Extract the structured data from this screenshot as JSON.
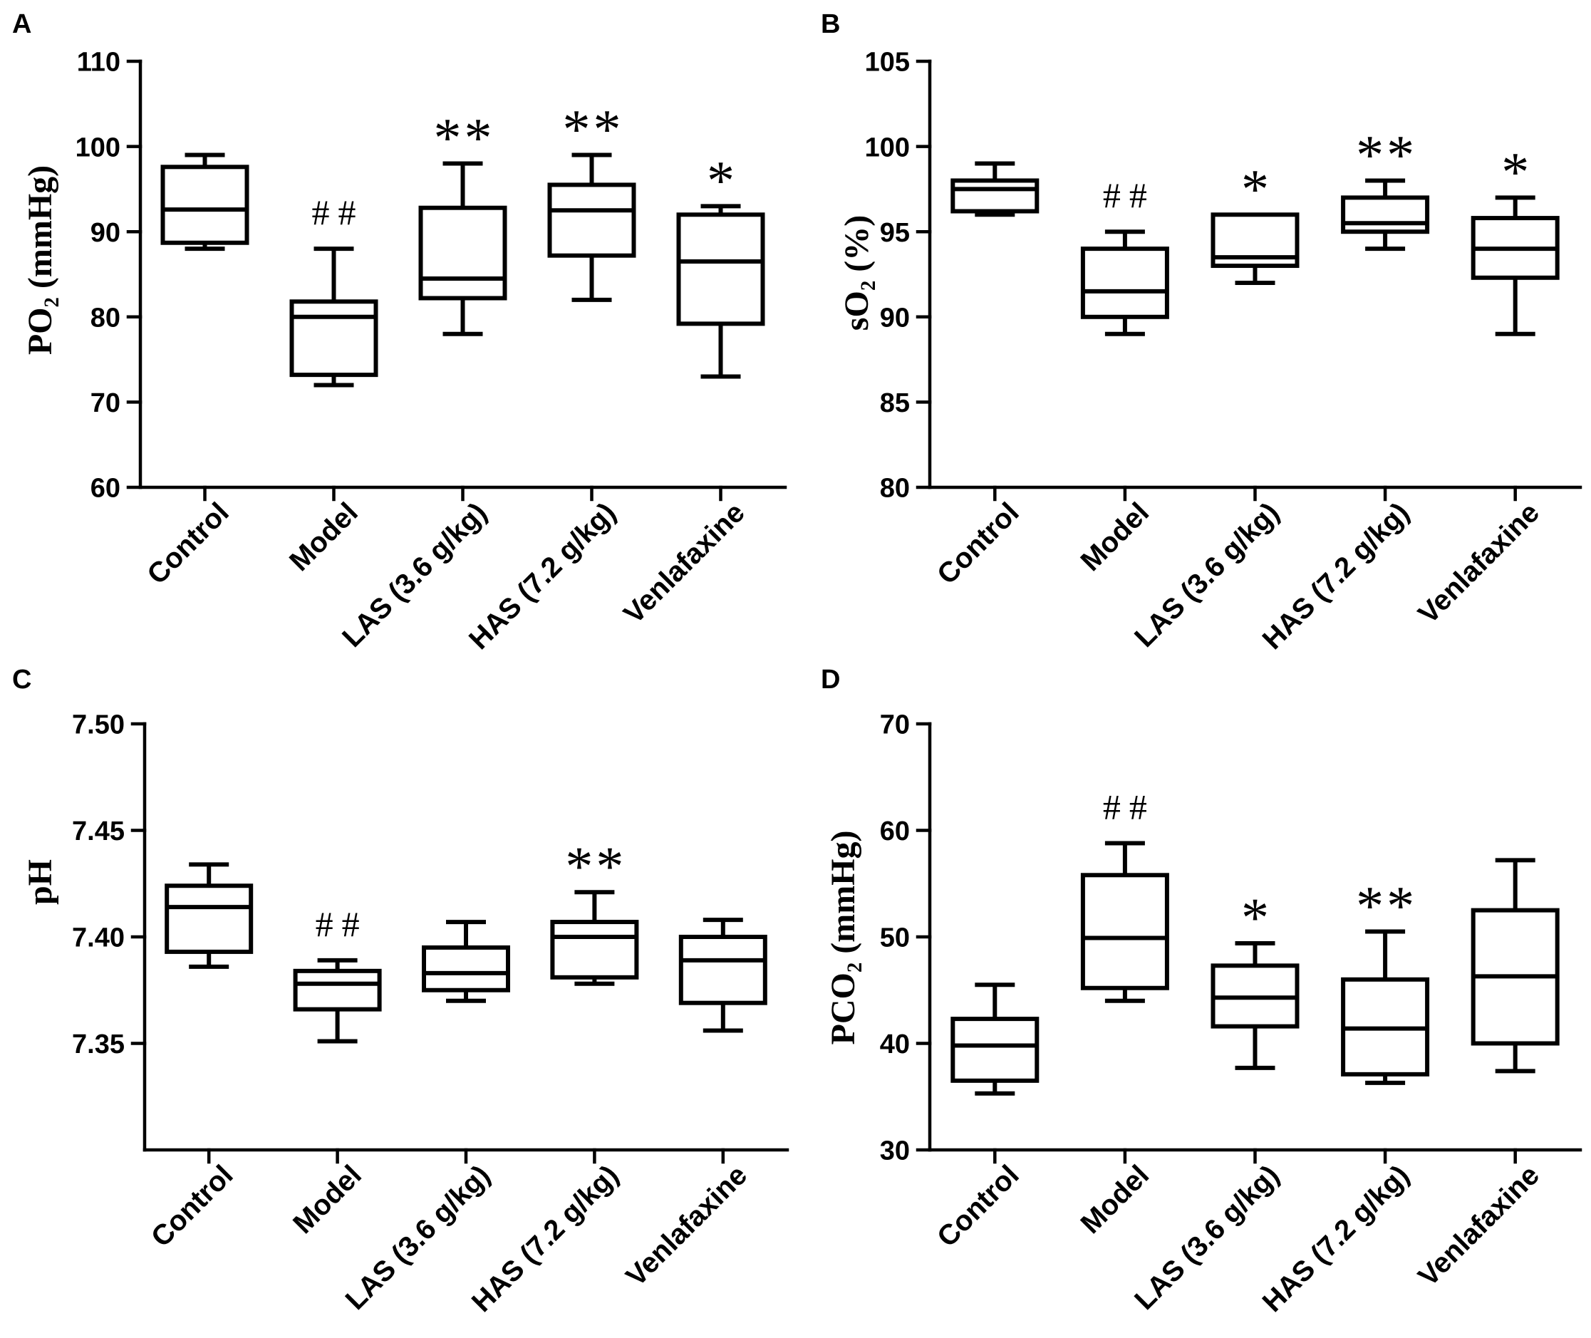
{
  "chart_data": [
    {
      "panel": "A",
      "type": "box",
      "ylabel": "PO₂ (mmHg)",
      "categories": [
        "Control",
        "Model",
        "LAS (3.6 g/kg)",
        "HAS (7.2 g/kg)",
        "Venlafaxine"
      ],
      "ylim": [
        60,
        110
      ],
      "yticks": [
        60,
        70,
        80,
        90,
        100,
        110
      ],
      "ytick_labels": [
        "60",
        "70",
        "80",
        "90",
        "100",
        "110"
      ],
      "boxes": [
        {
          "min": 88,
          "q1": 88.7,
          "median": 92.6,
          "q3": 97.6,
          "max": 99,
          "annotation": ""
        },
        {
          "min": 72,
          "q1": 73.2,
          "median": 80.0,
          "q3": 81.8,
          "max": 88,
          "annotation": "##"
        },
        {
          "min": 78,
          "q1": 82.2,
          "median": 84.5,
          "q3": 92.8,
          "max": 98,
          "annotation": "**"
        },
        {
          "min": 82,
          "q1": 87.2,
          "median": 92.5,
          "q3": 95.5,
          "max": 99,
          "annotation": "**"
        },
        {
          "min": 73,
          "q1": 79.2,
          "median": 86.5,
          "q3": 92.0,
          "max": 93,
          "annotation": "*"
        }
      ]
    },
    {
      "panel": "B",
      "type": "box",
      "ylabel": "sO₂ (%)",
      "categories": [
        "Control",
        "Model",
        "LAS (3.6 g/kg)",
        "HAS (7.2 g/kg)",
        "Venlafaxine"
      ],
      "ylim": [
        80,
        105
      ],
      "yticks": [
        80,
        85,
        90,
        95,
        100,
        105
      ],
      "ytick_labels": [
        "80",
        "85",
        "90",
        "95",
        "100",
        "105"
      ],
      "boxes": [
        {
          "min": 96.0,
          "q1": 96.2,
          "median": 97.5,
          "q3": 98.0,
          "max": 99.0,
          "annotation": ""
        },
        {
          "min": 89.0,
          "q1": 90.0,
          "median": 91.5,
          "q3": 94.0,
          "max": 95.0,
          "annotation": "##"
        },
        {
          "min": 92.0,
          "q1": 93.0,
          "median": 93.5,
          "q3": 96.0,
          "max": 96.0,
          "annotation": "*"
        },
        {
          "min": 94.0,
          "q1": 95.0,
          "median": 95.5,
          "q3": 97.0,
          "max": 98.0,
          "annotation": "**"
        },
        {
          "min": 89.0,
          "q1": 92.3,
          "median": 94.0,
          "q3": 95.8,
          "max": 97.0,
          "annotation": "*"
        }
      ]
    },
    {
      "panel": "C",
      "type": "box",
      "ylabel": "pH",
      "categories": [
        "Control",
        "Model",
        "LAS (3.6 g/kg)",
        "HAS (7.2 g/kg)",
        "Venlafaxine"
      ],
      "ylim": [
        7.3,
        7.5
      ],
      "yticks": [
        7.35,
        7.4,
        7.45,
        7.5
      ],
      "ytick_labels": [
        "7.35",
        "7.40",
        "7.45",
        "7.50"
      ],
      "boxes": [
        {
          "min": 7.386,
          "q1": 7.393,
          "median": 7.414,
          "q3": 7.424,
          "max": 7.434,
          "annotation": ""
        },
        {
          "min": 7.351,
          "q1": 7.366,
          "median": 7.378,
          "q3": 7.384,
          "max": 7.389,
          "annotation": "##"
        },
        {
          "min": 7.37,
          "q1": 7.375,
          "median": 7.383,
          "q3": 7.395,
          "max": 7.407,
          "annotation": ""
        },
        {
          "min": 7.378,
          "q1": 7.381,
          "median": 7.4,
          "q3": 7.407,
          "max": 7.421,
          "annotation": "**"
        },
        {
          "min": 7.356,
          "q1": 7.369,
          "median": 7.389,
          "q3": 7.4,
          "max": 7.408,
          "annotation": ""
        }
      ]
    },
    {
      "panel": "D",
      "type": "box",
      "ylabel": "PCO₂ (mmHg)",
      "categories": [
        "Control",
        "Model",
        "LAS (3.6 g/kg)",
        "HAS (7.2 g/kg)",
        "Venlafaxine"
      ],
      "ylim": [
        30,
        70
      ],
      "yticks": [
        30,
        40,
        50,
        60,
        70
      ],
      "ytick_labels": [
        "30",
        "40",
        "50",
        "60",
        "70"
      ],
      "boxes": [
        {
          "min": 35.3,
          "q1": 36.5,
          "median": 39.8,
          "q3": 42.3,
          "max": 45.5,
          "annotation": ""
        },
        {
          "min": 44.0,
          "q1": 45.2,
          "median": 49.9,
          "q3": 55.8,
          "max": 58.8,
          "annotation": "##"
        },
        {
          "min": 37.7,
          "q1": 41.6,
          "median": 44.3,
          "q3": 47.3,
          "max": 49.4,
          "annotation": "*"
        },
        {
          "min": 36.3,
          "q1": 37.1,
          "median": 41.4,
          "q3": 46.0,
          "max": 50.5,
          "annotation": "**"
        },
        {
          "min": 37.4,
          "q1": 40.0,
          "median": 46.3,
          "q3": 52.5,
          "max": 57.2,
          "annotation": ""
        }
      ]
    }
  ]
}
